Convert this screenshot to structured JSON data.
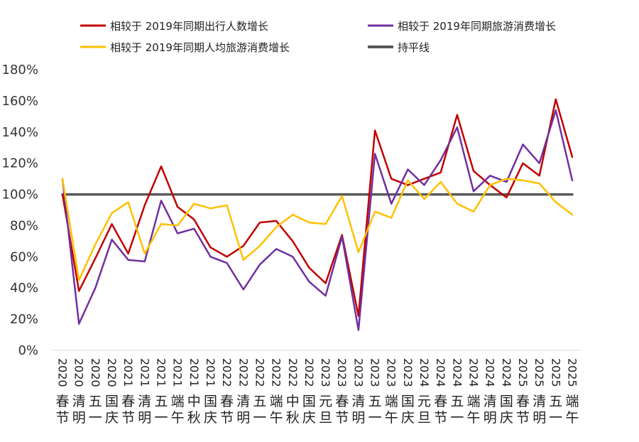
{
  "chart_data": {
    "type": "line",
    "title": "",
    "xlabel": "",
    "ylabel": "",
    "ylim": [
      0,
      180
    ],
    "y_ticks": [
      "0%",
      "20%",
      "40%",
      "60%",
      "80%",
      "100%",
      "120%",
      "140%",
      "160%",
      "180%"
    ],
    "grid": false,
    "legend_placement": "top",
    "categories": [
      {
        "year": "2020",
        "name": "春节"
      },
      {
        "year": "2020",
        "name": "清明"
      },
      {
        "year": "2020",
        "name": "五一"
      },
      {
        "year": "2020",
        "name": "国庆"
      },
      {
        "year": "2021",
        "name": "春节"
      },
      {
        "year": "2021",
        "name": "清明"
      },
      {
        "year": "2021",
        "name": "五一"
      },
      {
        "year": "2021",
        "name": "端午"
      },
      {
        "year": "2021",
        "name": "中秋"
      },
      {
        "year": "2021",
        "name": "国庆"
      },
      {
        "year": "2022",
        "name": "春节"
      },
      {
        "year": "2022",
        "name": "清明"
      },
      {
        "year": "2022",
        "name": "五一"
      },
      {
        "year": "2022",
        "name": "端午"
      },
      {
        "year": "2022",
        "name": "中秋"
      },
      {
        "year": "2022",
        "name": "国庆"
      },
      {
        "year": "2023",
        "name": "元旦"
      },
      {
        "year": "2023",
        "name": "春节"
      },
      {
        "year": "2023",
        "name": "清明"
      },
      {
        "year": "2023",
        "name": "五一"
      },
      {
        "year": "2023",
        "name": "端午"
      },
      {
        "year": "2023",
        "name": "国庆"
      },
      {
        "year": "2024",
        "name": "元旦"
      },
      {
        "year": "2024",
        "name": "春节"
      },
      {
        "year": "2024",
        "name": "五一"
      },
      {
        "year": "2024",
        "name": "端午"
      },
      {
        "year": "2024",
        "name": "清明"
      },
      {
        "year": "2024",
        "name": "国庆"
      },
      {
        "year": "2025",
        "name": "春节"
      },
      {
        "year": "2025",
        "name": "清明"
      },
      {
        "year": "2025",
        "name": "五一"
      },
      {
        "year": "2025",
        "name": "端午"
      }
    ],
    "series": [
      {
        "name": "相较于 2019年同期出行人数增长",
        "color": "#c00000",
        "values": [
          100,
          38,
          59,
          81,
          62,
          93,
          118,
          92,
          84,
          66,
          60,
          67,
          82,
          83,
          70,
          53,
          43,
          74,
          22,
          141,
          110,
          106,
          110,
          114,
          151,
          115,
          106,
          98,
          120,
          112,
          161,
          124
        ]
      },
      {
        "name": "相较于 2019年同期旅游消费增长",
        "color": "#7030a0",
        "values": [
          110,
          17,
          40,
          71,
          58,
          57,
          96,
          75,
          78,
          60,
          56,
          39,
          55,
          65,
          60,
          44,
          35,
          73,
          13,
          126,
          94,
          116,
          106,
          122,
          143,
          102,
          112,
          108,
          132,
          120,
          154,
          109
        ]
      },
      {
        "name": "相较于 2019年同期人均旅游消费增长",
        "color": "#ffc000",
        "values": [
          110,
          45,
          68,
          88,
          95,
          62,
          81,
          80,
          94,
          91,
          93,
          58,
          67,
          79,
          87,
          82,
          81,
          99,
          63,
          89,
          85,
          109,
          97,
          108,
          94,
          89,
          106,
          110,
          109,
          107,
          95,
          87
        ]
      },
      {
        "name": "持平线",
        "color": "#595959",
        "values": [
          100,
          100,
          100,
          100,
          100,
          100,
          100,
          100,
          100,
          100,
          100,
          100,
          100,
          100,
          100,
          100,
          100,
          100,
          100,
          100,
          100,
          100,
          100,
          100,
          100,
          100,
          100,
          100,
          100,
          100,
          100,
          100
        ]
      }
    ]
  }
}
